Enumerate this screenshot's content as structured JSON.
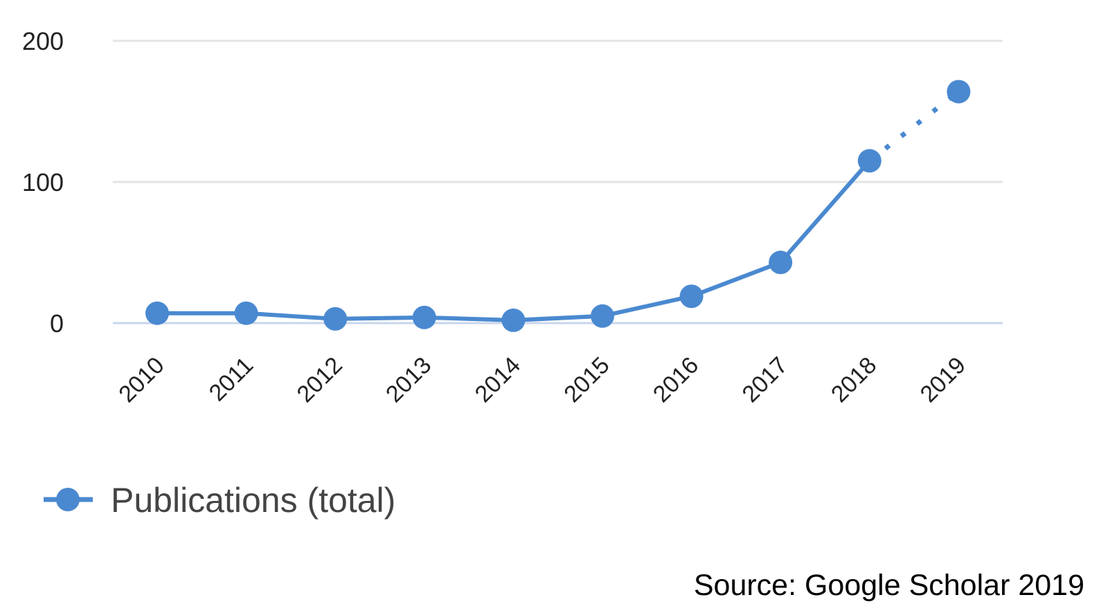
{
  "chart_data": {
    "type": "line",
    "categories": [
      "2010",
      "2011",
      "2012",
      "2013",
      "2014",
      "2015",
      "2016",
      "2017",
      "2018",
      "2019"
    ],
    "series": [
      {
        "name": "Publications (total)",
        "values": [
          7,
          7,
          3,
          4,
          2,
          5,
          19,
          43,
          115,
          164
        ],
        "projected_from_index": 8
      }
    ],
    "yticks": [
      0,
      100,
      200
    ],
    "ylim": [
      0,
      200
    ],
    "grid": true,
    "legend_position": "bottom-left",
    "colors": {
      "series": "#4a89d0",
      "grid": "#e3e3e3",
      "baseline": "#c8d6ec"
    }
  },
  "source": "Source: Google Scholar 2019"
}
